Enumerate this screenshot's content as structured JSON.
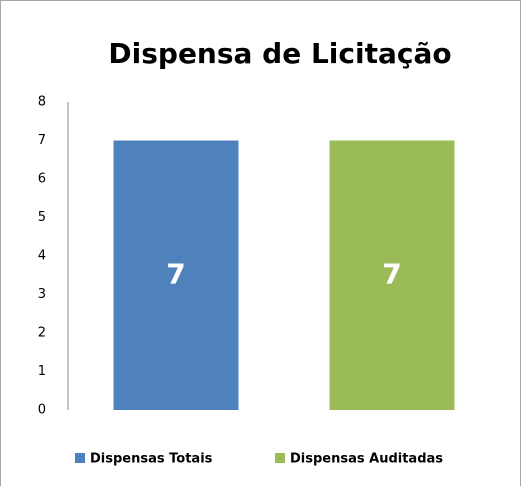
{
  "chart_data": {
    "type": "bar",
    "title": "Dispensa de Licitação",
    "categories": [
      null
    ],
    "series": [
      {
        "name": "Dispensas Totais",
        "color": "#4f81bd",
        "values": [
          7
        ]
      },
      {
        "name": "Dispensas Auditadas",
        "color": "#9bbb59",
        "values": [
          7
        ]
      }
    ],
    "ylim": [
      0,
      8
    ],
    "yticks": [
      0,
      1,
      2,
      3,
      4,
      5,
      6,
      7,
      8
    ],
    "grid": false,
    "legend": "bottom"
  }
}
